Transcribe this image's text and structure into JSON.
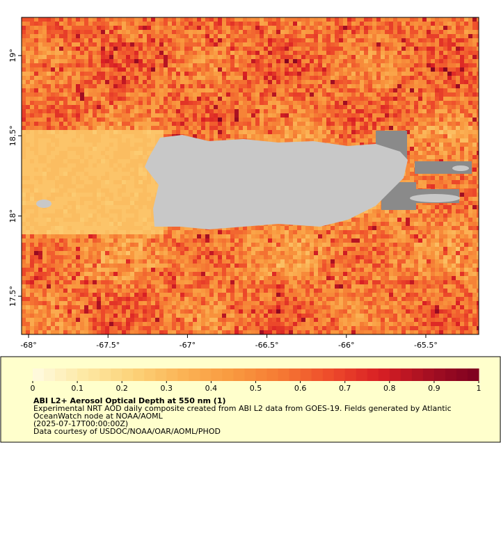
{
  "chart_data": {
    "type": "heatmap",
    "xlim": [
      -68.044,
      -65.167
    ],
    "ylim": [
      17.262,
      19.238
    ],
    "xticks": [
      {
        "value": -68,
        "label": "-68°"
      },
      {
        "value": -67.5,
        "label": "-67.5°"
      },
      {
        "value": -67,
        "label": "-67°"
      },
      {
        "value": -66.5,
        "label": "-66.5°"
      },
      {
        "value": -66,
        "label": "-66°"
      },
      {
        "value": -65.5,
        "label": "-65.5°"
      }
    ],
    "yticks": [
      {
        "value": 17.5,
        "label": "17.5°"
      },
      {
        "value": 18,
        "label": "18°"
      },
      {
        "value": 18.5,
        "label": "18.5°"
      },
      {
        "value": 19,
        "label": "19°"
      }
    ],
    "colorbar": {
      "range": [
        0,
        1
      ],
      "ticks": [
        0,
        0.1,
        0.2,
        0.3,
        0.4,
        0.5,
        0.6,
        0.7,
        0.8,
        0.9,
        1
      ],
      "colors": [
        "#fffbe2",
        "#fde9a6",
        "#fcd37a",
        "#fbb456",
        "#f99a40",
        "#f57a33",
        "#ee4b2b",
        "#d81f24",
        "#a50f22",
        "#7c0020"
      ]
    },
    "title": "ABI L2+ Aerosol Optical Depth at 550 nm (1)",
    "description": [
      "Experimental NRT AOD daily composite created from ABI L2 data from GOES-19. Fields generated by Atlantic",
      "OceanWatch node at NOAA/AOML",
      "(2025-07-17T00:00:00Z)",
      "Data courtesy of USDOC/NOAA/OAR/AOML/PHOD"
    ]
  }
}
